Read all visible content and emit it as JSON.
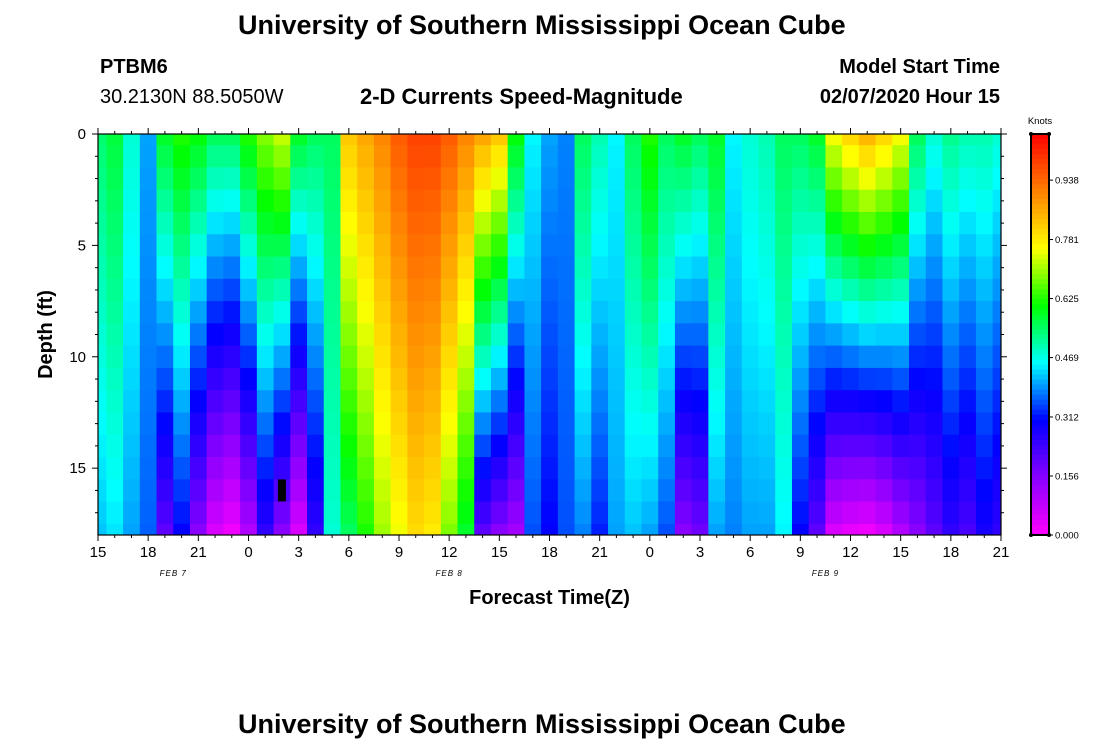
{
  "page": {
    "title_top": "University of Southern Mississippi Ocean Cube",
    "title_bottom": "University of Southern Mississippi Ocean Cube",
    "station_id": "PTBM6",
    "station_coords": "30.2130N 88.5050W",
    "chart_heading": "2-D Currents Speed-Magnitude",
    "model_start_label": "Model Start Time",
    "model_start_value": "02/07/2020 Hour 15"
  },
  "chart_data": {
    "type": "heatmap",
    "title": "2-D Currents Speed-Magnitude",
    "xlabel": "Forecast Time(Z)",
    "ylabel": "Depth (ft)",
    "x_tick_labels": [
      "15",
      "18",
      "21",
      "0",
      "3",
      "6",
      "9",
      "12",
      "15",
      "18",
      "21",
      "0",
      "3",
      "6",
      "9",
      "12",
      "15",
      "18",
      "21"
    ],
    "x_range_hours": [
      0,
      54
    ],
    "x_date_labels": [
      {
        "label": "FEB 7",
        "hour": 4.5
      },
      {
        "label": "FEB 8",
        "hour": 21
      },
      {
        "label": "FEB 9",
        "hour": 43.5
      }
    ],
    "y_ticks": [
      0,
      5,
      10,
      15
    ],
    "y_tick_labels": [
      "0",
      "5",
      "10",
      "15"
    ],
    "ylim": [
      0,
      18
    ],
    "y_inverted": true,
    "colorbar": {
      "label": "Knots",
      "ticks": [
        "0.000",
        "0.156",
        "0.312",
        "0.469",
        "0.625",
        "0.781",
        "0.938"
      ],
      "tick_values": [
        0.0,
        0.156,
        0.312,
        0.469,
        0.625,
        0.781,
        0.938
      ],
      "range": [
        0,
        1.06
      ],
      "colors": [
        "#ff00ff",
        "#8800ff",
        "#0000ff",
        "#00ffff",
        "#00ff00",
        "#ffff00",
        "#ff8000",
        "#ff0000"
      ]
    },
    "speed_profiles_knots": {
      "hours": [
        0,
        1,
        2,
        3,
        4,
        5,
        6,
        7,
        8,
        9,
        10,
        11,
        12,
        13,
        14,
        15,
        16,
        17,
        18,
        19,
        20,
        21,
        22,
        23,
        24,
        25,
        26,
        27,
        28,
        29,
        30,
        31,
        32,
        33,
        34,
        35,
        36,
        37,
        38,
        39,
        40,
        41,
        42,
        43,
        44,
        45,
        46,
        47,
        48,
        49,
        50,
        51,
        52,
        53,
        54
      ],
      "surface": [
        0.54,
        0.57,
        0.48,
        0.4,
        0.58,
        0.62,
        0.6,
        0.55,
        0.55,
        0.62,
        0.68,
        0.72,
        0.58,
        0.55,
        0.55,
        0.82,
        0.86,
        0.9,
        0.95,
        0.98,
        0.98,
        0.95,
        0.9,
        0.86,
        0.82,
        0.6,
        0.45,
        0.4,
        0.38,
        0.55,
        0.5,
        0.45,
        0.55,
        0.62,
        0.55,
        0.58,
        0.55,
        0.58,
        0.45,
        0.48,
        0.5,
        0.55,
        0.55,
        0.58,
        0.75,
        0.8,
        0.84,
        0.8,
        0.75,
        0.55,
        0.48,
        0.52,
        0.5,
        0.5,
        0.48
      ],
      "bottom": [
        0.42,
        0.44,
        0.4,
        0.36,
        0.2,
        0.3,
        0.15,
        0.05,
        0.02,
        0.1,
        0.25,
        0.15,
        0.05,
        0.25,
        0.48,
        0.55,
        0.62,
        0.7,
        0.75,
        0.8,
        0.78,
        0.68,
        0.58,
        0.2,
        0.15,
        0.12,
        0.35,
        0.3,
        0.35,
        0.38,
        0.32,
        0.4,
        0.42,
        0.4,
        0.35,
        0.15,
        0.18,
        0.4,
        0.38,
        0.4,
        0.4,
        0.45,
        0.3,
        0.2,
        0.05,
        0.03,
        0.02,
        0.05,
        0.1,
        0.15,
        0.2,
        0.25,
        0.22,
        0.28,
        0.25
      ]
    },
    "annotations": [
      {
        "type": "marker",
        "hour": 11,
        "depth_ft": 16
      }
    ]
  }
}
